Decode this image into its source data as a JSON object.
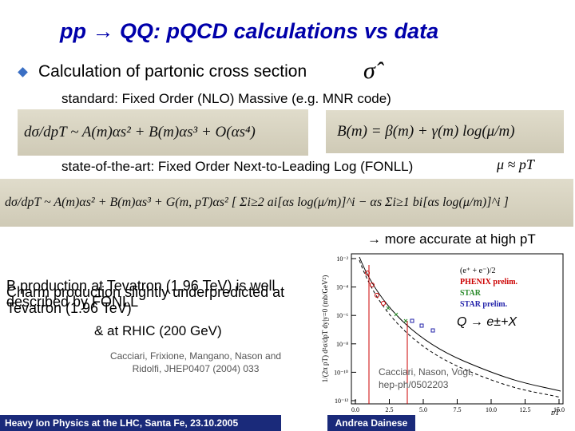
{
  "slide": {
    "title": "pp → QQ: pQCD calculations vs data",
    "bullet": "Calculation of partonic cross section",
    "sigma_hat": "σ̂",
    "sub1": "standard: Fixed Order (NLO) Massive (e.g. MNR code)",
    "eq1_left": "dσ/dpT ~ A(m)αs² + B(m)αs³ + O(αs⁴)",
    "eq1_right": "B(m) = β(m) + γ(m) log(μ/m)",
    "sub2": "state-of-the-art: Fixed Order Next-to-Leading Log (FONLL)",
    "mu": "μ ≈ pT",
    "eq2": "dσ/dpT ~ A(m)αs² + B(m)αs³ + G(m, pT)αs² [ Σi≥2 ai[αs log(μ/m)]^i − αs Σi≥1 bi[αs log(μ/m)]^i ]",
    "accurate": "→ more accurate at high pT",
    "b_text": "B production at Tevatron (1.96 TeV) is well described by FONLL",
    "charm_text": "Charm production slightly underpredicted at Tevatron (1.96 TeV)",
    "rhic": "& at RHIC (200 GeV)",
    "cite1": "Cacciari, Frixione, Mangano, Nason and Ridolfi, JHEP0407 (2004) 033",
    "cite2": "Cacciari, Nason, Vogt, hep-ph/0502203",
    "plot": {
      "ylabel": "1/(2π pT) d²σ/dpT dy|y=0 (mb/GeV²)",
      "xlabel": "pT",
      "yticks": [
        "10⁻²",
        "10⁻⁴",
        "10⁻⁶",
        "10⁻⁸",
        "10⁻¹⁰",
        "10⁻¹²"
      ],
      "xticks": [
        "0.0",
        "2.5",
        "5.0",
        "7.5",
        "10.0",
        "12.5",
        "15.0"
      ],
      "legend": [
        "(e⁺ + e⁻)/2",
        "PHENIX prelim.",
        "STAR",
        "STAR prelim."
      ],
      "annotation": "Q → e±+X"
    },
    "footer_left": "Heavy Ion Physics at the LHC, Santa Fe, 23.10.2005",
    "footer_right": "Andrea Dainese"
  }
}
